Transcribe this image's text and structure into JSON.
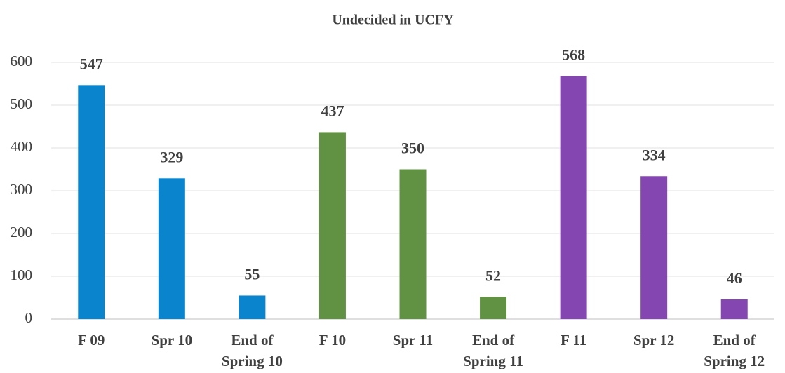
{
  "chart_data": {
    "type": "bar",
    "title": "Undecided in UCFY",
    "categories": [
      "F 09",
      "Spr 10",
      "End of Spring 10",
      "F 10",
      "Spr 11",
      "End of Spring 11",
      "F 11",
      "Spr 12",
      "End of Spring 12"
    ],
    "values": [
      547,
      329,
      55,
      437,
      350,
      52,
      568,
      334,
      46
    ],
    "colors": [
      "#0a84cc",
      "#0a84cc",
      "#0a84cc",
      "#619243",
      "#619243",
      "#619243",
      "#8446b0",
      "#8446b0",
      "#8446b0"
    ],
    "ylim": [
      0,
      600
    ],
    "yticks": [
      0,
      100,
      200,
      300,
      400,
      500,
      600
    ],
    "grid": true
  }
}
